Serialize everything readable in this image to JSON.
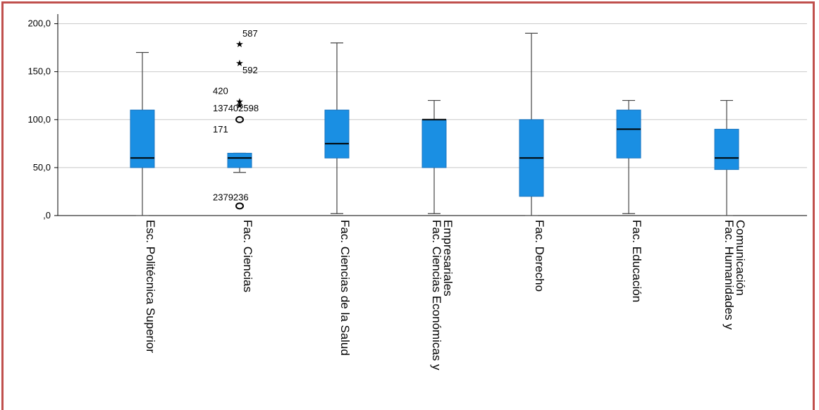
{
  "chart_data": {
    "type": "box",
    "ylim": [
      0,
      210
    ],
    "yticks": [
      0,
      50,
      100,
      150,
      200
    ],
    "ytick_labels": [
      ",0",
      "50,0",
      "100,0",
      "150,0",
      "200,0"
    ],
    "grid": true,
    "box_color": "#1a8fe3",
    "categories": [
      {
        "label_lines": [
          "Esc. Politécnica Superior"
        ],
        "min": 0,
        "q1": 50,
        "median": 60,
        "q3": 110,
        "max": 170
      },
      {
        "label_lines": [
          "Fac. Ciencias"
        ],
        "min": 45,
        "q1": 50,
        "median": 60,
        "q3": 65,
        "max": 65
      },
      {
        "label_lines": [
          "Fac. Ciencias de la Salud"
        ],
        "min": 2,
        "q1": 60,
        "median": 75,
        "q3": 110,
        "max": 180
      },
      {
        "label_lines": [
          "Fac. Ciencias Económicas y",
          "Empresariales"
        ],
        "min": 2,
        "q1": 50,
        "median": 100,
        "q3": 100,
        "max": 120
      },
      {
        "label_lines": [
          "Fac. Derecho"
        ],
        "min": 0,
        "q1": 20,
        "median": 60,
        "q3": 100,
        "max": 190
      },
      {
        "label_lines": [
          "Fac. Educación"
        ],
        "min": 2,
        "q1": 60,
        "median": 90,
        "q3": 110,
        "max": 120
      },
      {
        "label_lines": [
          "Fac. Humanidades y",
          "Comunicación"
        ],
        "min": 0,
        "q1": 48,
        "median": 60,
        "q3": 90,
        "max": 120
      }
    ],
    "outliers": [
      {
        "category": 1,
        "value": 180,
        "marker": "star",
        "label": "587"
      },
      {
        "category": 1,
        "value": 160,
        "marker": "star",
        "label": "592"
      },
      {
        "category": 1,
        "value": 120,
        "marker": "star",
        "label": "420"
      },
      {
        "category": 1,
        "value": 116,
        "marker": "star",
        "label": "137402598"
      },
      {
        "category": 1,
        "value": 100,
        "marker": "circle",
        "label": "171"
      },
      {
        "category": 1,
        "value": 10,
        "marker": "circle",
        "label": "2379236"
      }
    ]
  }
}
